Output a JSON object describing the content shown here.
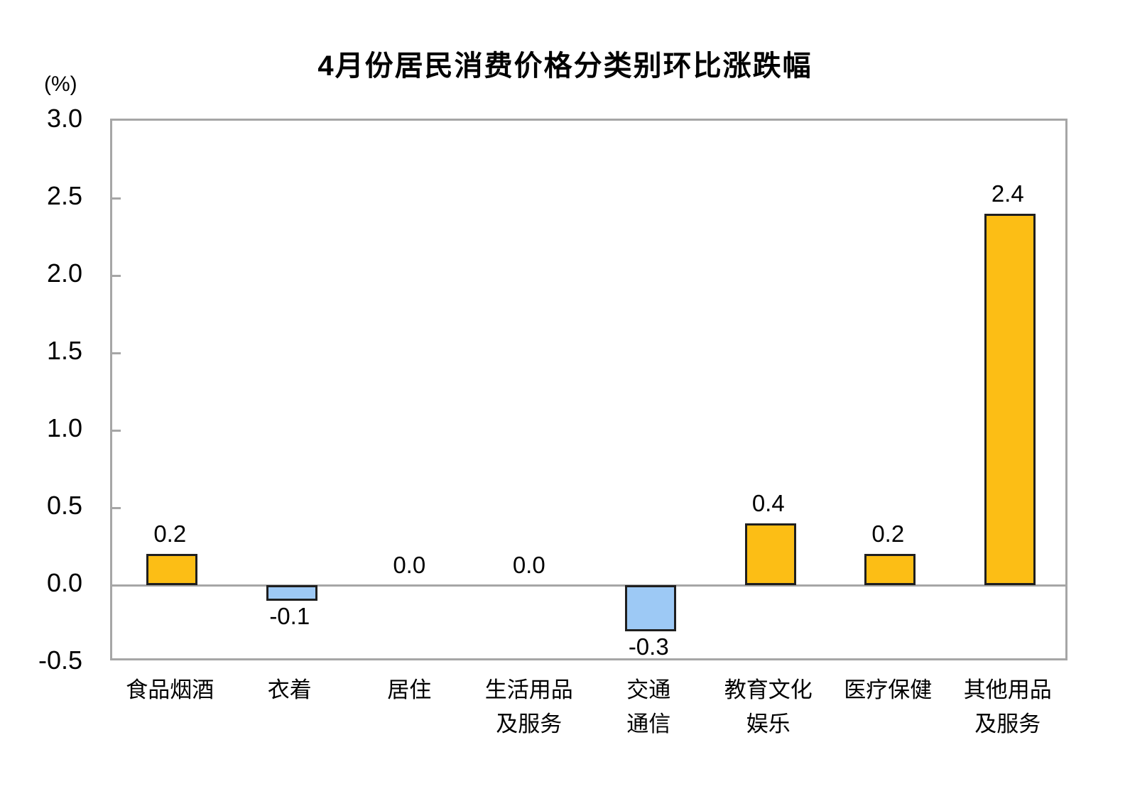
{
  "chart_data": {
    "type": "bar",
    "title": "4月份居民消费价格分类别环比涨跌幅",
    "unit_label": "(%)",
    "categories": [
      "食品烟酒",
      "衣着",
      "居住",
      "生活用品\n及服务",
      "交通\n通信",
      "教育文化\n娱乐",
      "医疗保健",
      "其他用品\n及服务"
    ],
    "values": [
      0.2,
      -0.1,
      0.0,
      0.0,
      -0.3,
      0.4,
      0.2,
      2.4
    ],
    "value_labels": [
      "0.2",
      "-0.1",
      "0.0",
      "0.0",
      "-0.3",
      "0.4",
      "0.2",
      "2.4"
    ],
    "ylim": [
      -0.5,
      3.0
    ],
    "ytick_step": 0.5,
    "yticks": [
      3.0,
      2.5,
      2.0,
      1.5,
      1.0,
      0.5,
      0.0,
      -0.5
    ],
    "grid": false,
    "legend": "none",
    "colors": {
      "positive_bar": "#FCBE15",
      "negative_bar": "#9DC9F5",
      "bar_border": "#1F1F1F",
      "axis": "#A6A6A6",
      "text": "#000000",
      "background": "#FFFFFF"
    }
  }
}
